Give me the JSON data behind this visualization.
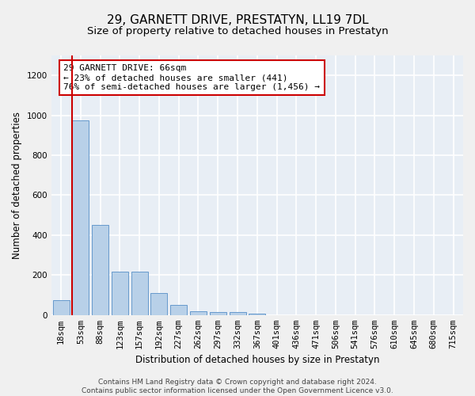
{
  "title": "29, GARNETT DRIVE, PRESTATYN, LL19 7DL",
  "subtitle": "Size of property relative to detached houses in Prestatyn",
  "xlabel": "Distribution of detached houses by size in Prestatyn",
  "ylabel": "Number of detached properties",
  "categories": [
    "18sqm",
    "53sqm",
    "88sqm",
    "123sqm",
    "157sqm",
    "192sqm",
    "227sqm",
    "262sqm",
    "297sqm",
    "332sqm",
    "367sqm",
    "401sqm",
    "436sqm",
    "471sqm",
    "506sqm",
    "541sqm",
    "576sqm",
    "610sqm",
    "645sqm",
    "680sqm",
    "715sqm"
  ],
  "values": [
    75,
    975,
    450,
    215,
    215,
    110,
    50,
    20,
    15,
    15,
    8,
    0,
    0,
    0,
    0,
    0,
    0,
    0,
    0,
    0,
    0
  ],
  "bar_color": "#b8d0e8",
  "bar_edge_color": "#6699cc",
  "property_line_color": "#cc0000",
  "annotation_line1": "29 GARNETT DRIVE: 66sqm",
  "annotation_line2": "← 23% of detached houses are smaller (441)",
  "annotation_line3": "76% of semi-detached houses are larger (1,456) →",
  "annotation_box_color": "#ffffff",
  "annotation_box_edge_color": "#cc0000",
  "ylim": [
    0,
    1300
  ],
  "yticks": [
    0,
    200,
    400,
    600,
    800,
    1000,
    1200
  ],
  "footer_text": "Contains HM Land Registry data © Crown copyright and database right 2024.\nContains public sector information licensed under the Open Government Licence v3.0.",
  "background_color": "#e8eef5",
  "grid_color": "#ffffff",
  "title_fontsize": 11,
  "subtitle_fontsize": 9.5,
  "axis_label_fontsize": 8.5,
  "tick_fontsize": 7.5,
  "annotation_fontsize": 8,
  "footer_fontsize": 6.5
}
